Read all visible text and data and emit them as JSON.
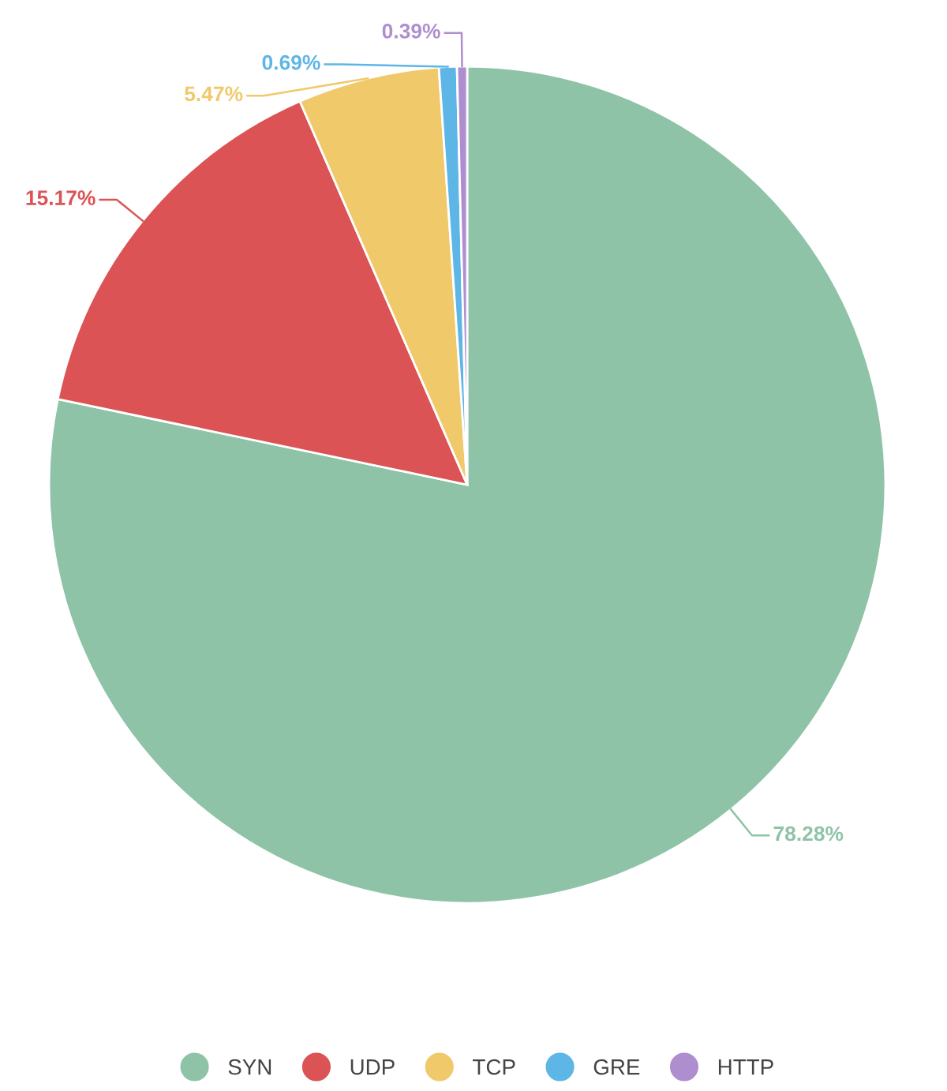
{
  "chart_data": {
    "type": "pie",
    "categories": [
      "SYN",
      "UDP",
      "TCP",
      "GRE",
      "HTTP"
    ],
    "values": [
      78.28,
      15.17,
      5.47,
      0.69,
      0.39
    ],
    "value_labels": [
      "78.28%",
      "15.17%",
      "5.47%",
      "0.69%",
      "0.39%"
    ],
    "colors": [
      "#8fc3a7",
      "#db5355",
      "#f0c96b",
      "#5db6e6",
      "#ae8ecf"
    ],
    "legend": "bottom"
  }
}
